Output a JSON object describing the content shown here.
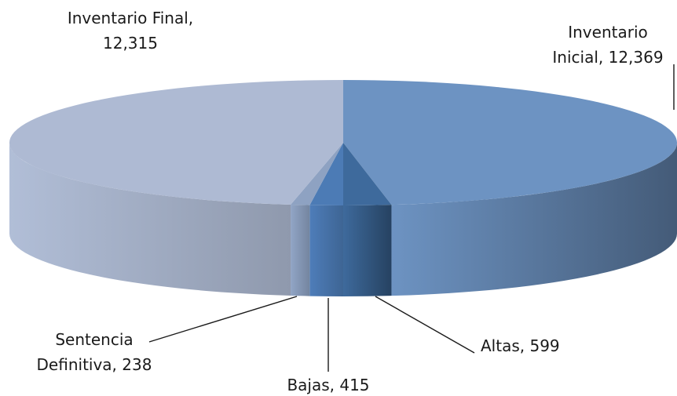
{
  "chart_data": {
    "type": "pie",
    "title": "",
    "slices": [
      {
        "name": "Inventario Inicial",
        "value": 12369,
        "color": "#6d93c2",
        "label_lines": [
          "Inventario",
          "Inicial, 12,369"
        ]
      },
      {
        "name": "Altas",
        "value": 599,
        "color": "#3e6a9c",
        "label_lines": [
          "Altas, 599"
        ]
      },
      {
        "name": "Bajas",
        "value": 415,
        "color": "#4c7bb5",
        "label_lines": [
          "Bajas, 415"
        ]
      },
      {
        "name": "Sentencia Definitiva",
        "value": 238,
        "color": "#8ea2c2",
        "label_lines": [
          "Sentencia",
          "Definitiva, 238"
        ]
      },
      {
        "name": "Inventario Final",
        "value": 12315,
        "color": "#aebad3",
        "label_lines": [
          "Inventario Final,",
          "12,315"
        ]
      }
    ],
    "style": "3d-pie",
    "legend": "none"
  }
}
